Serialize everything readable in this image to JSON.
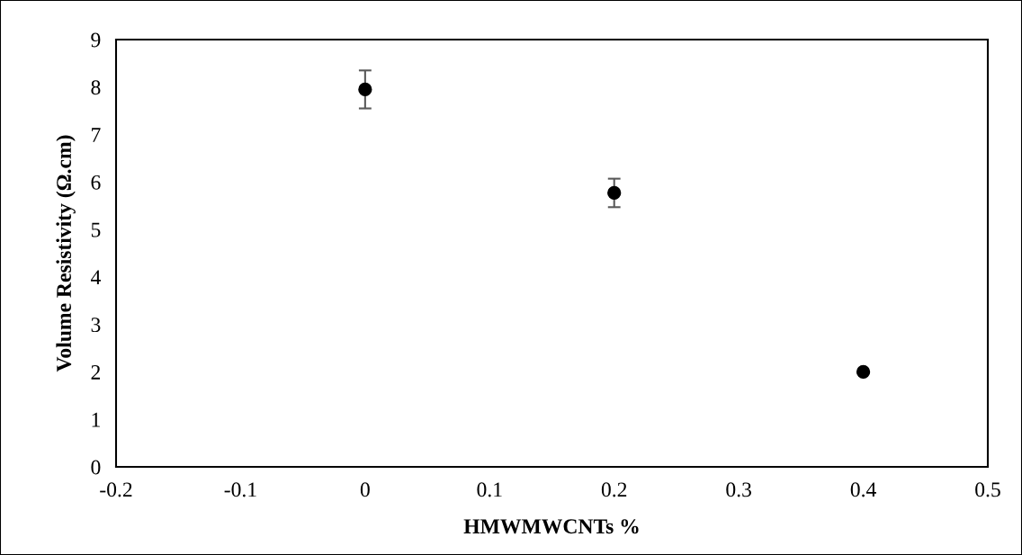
{
  "chart_data": {
    "type": "scatter",
    "xlabel": "HMWMWCNTs %",
    "ylabel": "Volume Resistivity (Ω.cm)",
    "x": [
      0,
      0.2,
      0.4
    ],
    "series": [
      {
        "color": "#000000",
        "values": [
          7.95,
          5.77,
          2.0
        ],
        "errors": [
          0.4,
          0.3,
          null
        ]
      }
    ],
    "marker": "circle",
    "xlim": [
      -0.2,
      0.5
    ],
    "xticks": [
      {
        "value": -0.2,
        "label": "-0.2"
      },
      {
        "value": -0.1,
        "label": "-0.1"
      },
      0,
      0.1,
      0.2,
      0.3,
      0.4,
      0.5
    ],
    "ylim": [
      0,
      9
    ],
    "yticks": [
      0,
      1,
      2,
      3,
      4,
      5,
      6,
      7,
      8,
      9
    ],
    "grid": false,
    "legend": false
  }
}
